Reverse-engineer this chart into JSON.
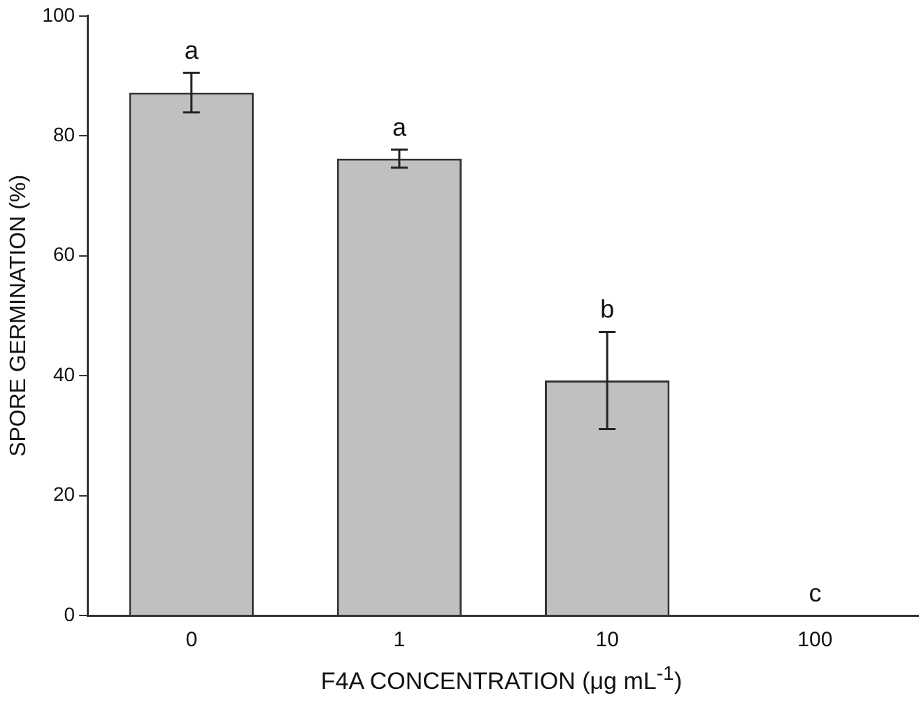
{
  "chart_data": {
    "type": "bar",
    "xlabel": "F4A CONCENTRATION (μg mL$^{-1}$)",
    "ylabel": "SPORE GERMINATION (%)",
    "categories": [
      "0",
      "1",
      "10",
      "100"
    ],
    "values": [
      87.2,
      76.2,
      39.2,
      0
    ],
    "errors": [
      3.3,
      1.5,
      8.1,
      null
    ],
    "color": "#c0c0c0",
    "ylim": [
      0,
      100
    ],
    "yticks": [
      0,
      20,
      40,
      60,
      80,
      100
    ],
    "grid": false,
    "legend": false,
    "annotations": [
      {
        "text": "a",
        "x": "0",
        "y": 90.5
      },
      {
        "text": "a",
        "x": "1",
        "y": 77.7
      },
      {
        "text": "b",
        "x": "10",
        "y": 47.3
      },
      {
        "text": "c",
        "x": "100",
        "y": 0
      }
    ]
  }
}
